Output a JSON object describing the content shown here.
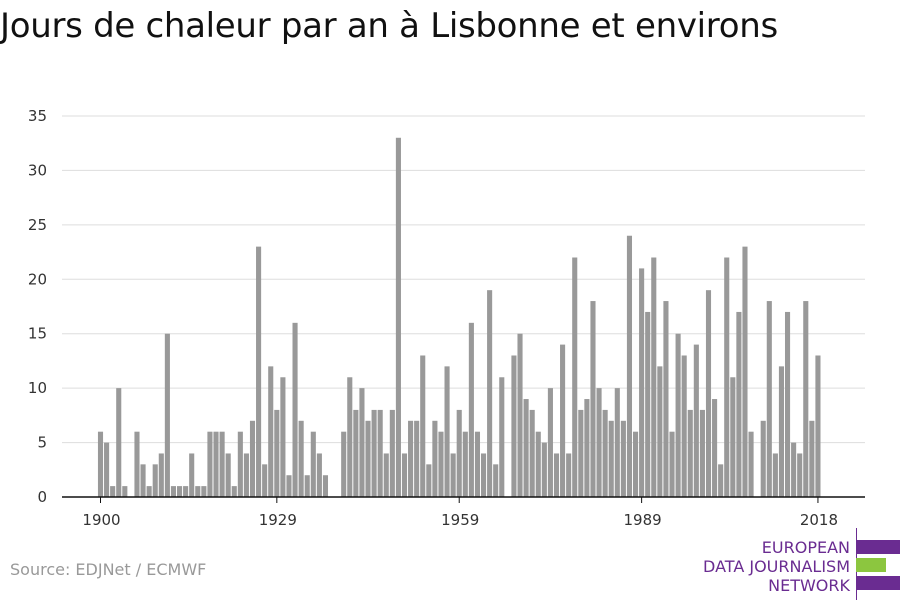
{
  "title": "Jours de chaleur par an à Lisbonne et environs",
  "source": "Source: EDJNet / ECMWF",
  "logo": {
    "lines": [
      "EUROPEAN",
      "DATA JOURNALISM",
      "NETWORK"
    ],
    "colors": {
      "purple": "#6a2c91",
      "green": "#8cc63f"
    }
  },
  "chart_data": {
    "type": "bar",
    "xlabel": "",
    "ylabel": "",
    "ylim": [
      0,
      35
    ],
    "yticks": [
      0,
      5,
      10,
      15,
      20,
      25,
      30,
      35
    ],
    "xtick_labels": [
      "1900",
      "1929",
      "1959",
      "1989",
      "2018"
    ],
    "grid": true,
    "bar_color": "#999999",
    "x": [
      1900,
      1901,
      1902,
      1903,
      1904,
      1905,
      1906,
      1907,
      1908,
      1909,
      1910,
      1911,
      1912,
      1913,
      1914,
      1915,
      1916,
      1917,
      1918,
      1919,
      1920,
      1921,
      1922,
      1923,
      1924,
      1925,
      1926,
      1927,
      1928,
      1929,
      1930,
      1931,
      1932,
      1933,
      1934,
      1935,
      1936,
      1937,
      1938,
      1939,
      1940,
      1941,
      1942,
      1943,
      1944,
      1945,
      1946,
      1947,
      1948,
      1949,
      1950,
      1951,
      1952,
      1953,
      1954,
      1955,
      1956,
      1957,
      1958,
      1959,
      1960,
      1961,
      1962,
      1963,
      1964,
      1965,
      1966,
      1967,
      1968,
      1969,
      1970,
      1971,
      1972,
      1973,
      1974,
      1975,
      1976,
      1977,
      1978,
      1979,
      1980,
      1981,
      1982,
      1983,
      1984,
      1985,
      1986,
      1987,
      1988,
      1989,
      1990,
      1991,
      1992,
      1993,
      1994,
      1995,
      1996,
      1997,
      1998,
      1999,
      2000,
      2001,
      2002,
      2003,
      2004,
      2005,
      2006,
      2007,
      2008,
      2009,
      2010,
      2011,
      2012,
      2013,
      2014,
      2015,
      2016,
      2017,
      2018
    ],
    "values": [
      6,
      5,
      1,
      10,
      1,
      0,
      6,
      3,
      1,
      3,
      4,
      15,
      1,
      1,
      1,
      4,
      1,
      1,
      6,
      6,
      6,
      4,
      1,
      6,
      4,
      7,
      23,
      3,
      12,
      8,
      11,
      2,
      16,
      7,
      2,
      6,
      4,
      2,
      0,
      0,
      6,
      11,
      8,
      10,
      7,
      8,
      8,
      4,
      8,
      33,
      4,
      7,
      7,
      13,
      3,
      7,
      6,
      12,
      4,
      8,
      6,
      16,
      6,
      4,
      19,
      3,
      11,
      0,
      13,
      15,
      9,
      8,
      6,
      5,
      10,
      4,
      14,
      4,
      22,
      8,
      9,
      18,
      10,
      8,
      7,
      10,
      7,
      24,
      6,
      21,
      17,
      22,
      12,
      18,
      6,
      15,
      13,
      8,
      14,
      8,
      19,
      9,
      3,
      22,
      11,
      17,
      23,
      6,
      0,
      7,
      18,
      4,
      12,
      17,
      5,
      4,
      18,
      7,
      13
    ]
  }
}
